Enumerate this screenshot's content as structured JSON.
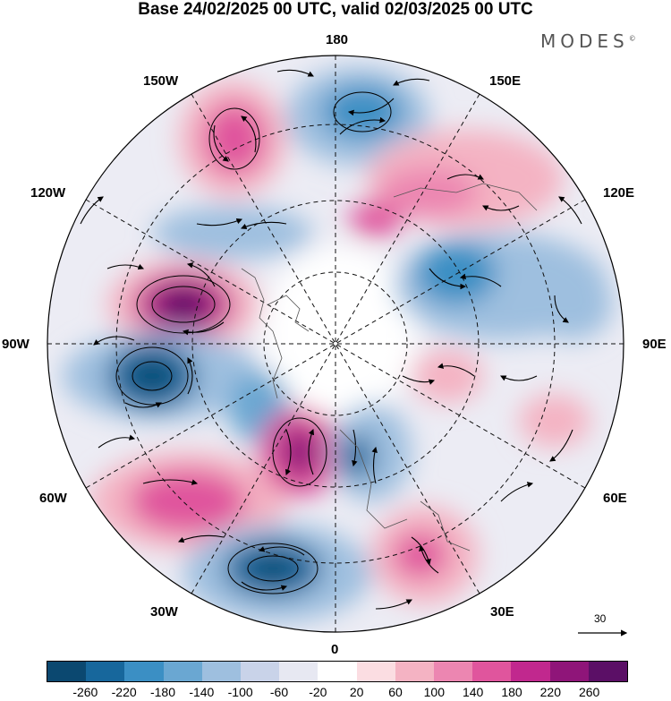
{
  "title": "Base 24/02/2025 00 UTC, valid 02/03/2025 00 UTC",
  "brand": {
    "name": "MODES",
    "mark": "©"
  },
  "longitude_labels": {
    "lon_180": "180",
    "lon_150e": "150E",
    "lon_120e": "120E",
    "lon_90e": "90E",
    "lon_60e": "60E",
    "lon_30e": "30E",
    "lon_0": "0",
    "lon_30w": "30W",
    "lon_60w": "60W",
    "lon_90w": "90W",
    "lon_120w": "120W",
    "lon_150w": "150W"
  },
  "reference_vector": {
    "label": "30"
  },
  "colorbar": {
    "colors": [
      "#0b4870",
      "#17679c",
      "#3b8fc4",
      "#6aa7d2",
      "#9ebfdf",
      "#c9d3e9",
      "#e7e8f2",
      "#ffffff",
      "#fbdde2",
      "#f4b3c3",
      "#ec86b1",
      "#e0559d",
      "#c1288e",
      "#8f1579",
      "#5b0f66"
    ],
    "tick_labels": [
      "-260",
      "-220",
      "-180",
      "-140",
      "-100",
      "-60",
      "-20",
      "20",
      "60",
      "100",
      "140",
      "180",
      "220",
      "260"
    ]
  },
  "colors": {
    "neg_strong": "#0b4870",
    "neg_mid": "#3b8fc4",
    "neg_weak": "#c9d3e9",
    "pos_weak": "#f4b3c3",
    "pos_mid": "#e0559d",
    "pos_strong": "#5b0f66"
  }
}
